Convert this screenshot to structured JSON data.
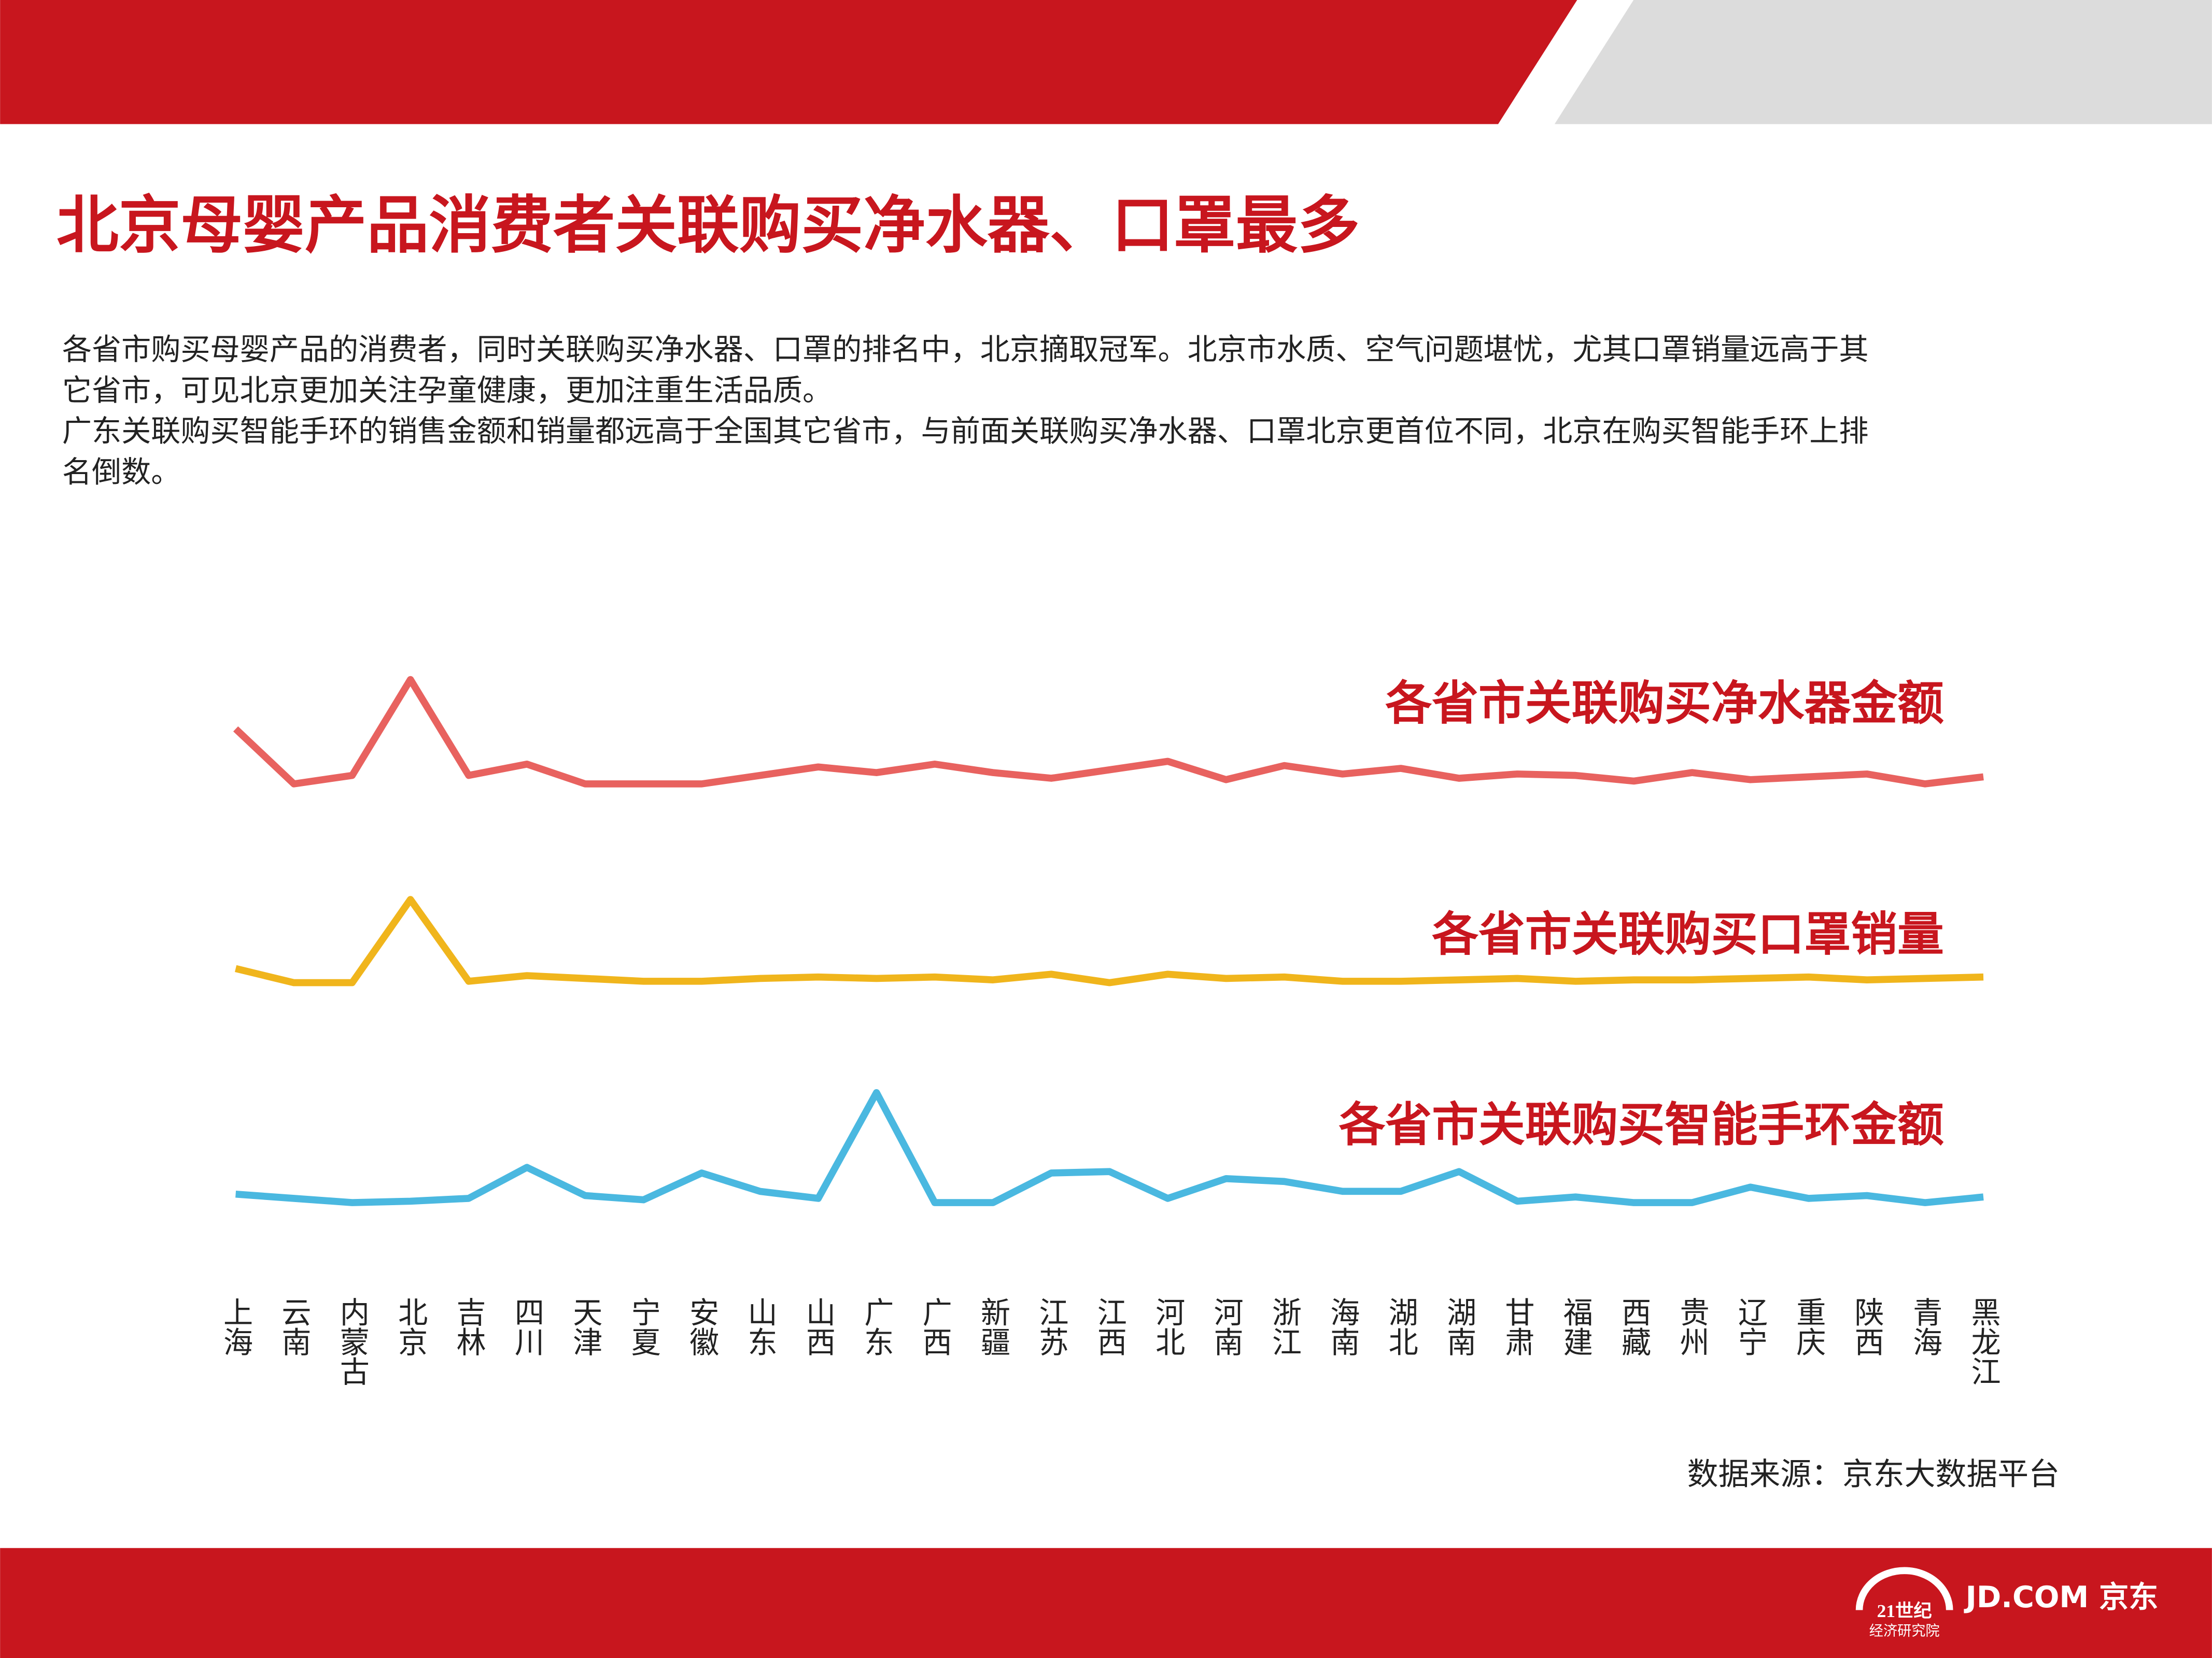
{
  "header": {
    "title": "北京母婴产品消费者关联购买净水器、口罩最多",
    "paragraph": [
      "各省市购买母婴产品的消费者，同时关联购买净水器、口罩的排名中，北京摘取冠军。北京市水质、空气问题堪忧，尤其口罩销量远高于其",
      "它省市，可见北京更加关注孕童健康，更加注重生活品质。",
      "广东关联购买智能手环的销售金额和销量都远高于全国其它省市，与前面关联购买净水器、口罩北京更首位不同，北京在购买智能手环上排",
      "名倒数。"
    ]
  },
  "chart_data": {
    "type": "line",
    "categories": [
      "上海",
      "云南",
      "内蒙古",
      "北京",
      "吉林",
      "四川",
      "天津",
      "宁夏",
      "安徽",
      "山东",
      "山西",
      "广东",
      "广西",
      "新疆",
      "江苏",
      "江西",
      "河北",
      "河南",
      "浙江",
      "海南",
      "湖北",
      "湖南",
      "甘肃",
      "福建",
      "西藏",
      "贵州",
      "辽宁",
      "重庆",
      "陕西",
      "青海",
      "黑龙江"
    ],
    "series": [
      {
        "name": "各省市关联购买净水器金额",
        "color": "#e8625f",
        "values": [
          43,
          4,
          10,
          78,
          10,
          18,
          4,
          4,
          4,
          10,
          16,
          12,
          18,
          12,
          8,
          14,
          20,
          7,
          17,
          11,
          15,
          8,
          11,
          10,
          6,
          12,
          7,
          9,
          11,
          4,
          9
        ]
      },
      {
        "name": "各省市关联购买口罩销量",
        "color": "#f0b51c",
        "values": [
          13,
          3,
          3,
          62,
          4,
          8,
          6,
          4,
          4,
          6,
          7,
          6,
          7,
          5,
          9,
          3,
          9,
          6,
          7,
          4,
          4,
          5,
          6,
          4,
          5,
          5,
          6,
          7,
          5,
          6,
          7
        ]
      },
      {
        "name": "各省市关联购买智能手环金额",
        "color": "#4ab8e0",
        "values": [
          9,
          6,
          3,
          4,
          6,
          28,
          8,
          5,
          24,
          11,
          6,
          81,
          3,
          3,
          24,
          25,
          6,
          20,
          18,
          11,
          11,
          25,
          4,
          7,
          3,
          3,
          14,
          6,
          8,
          3,
          7
        ]
      }
    ],
    "source": "数据来源：京东大数据平台"
  },
  "footer": {
    "logo1": "21世纪",
    "logo1_sub": "经济研究院",
    "logo2": "JD.COM 京东"
  }
}
